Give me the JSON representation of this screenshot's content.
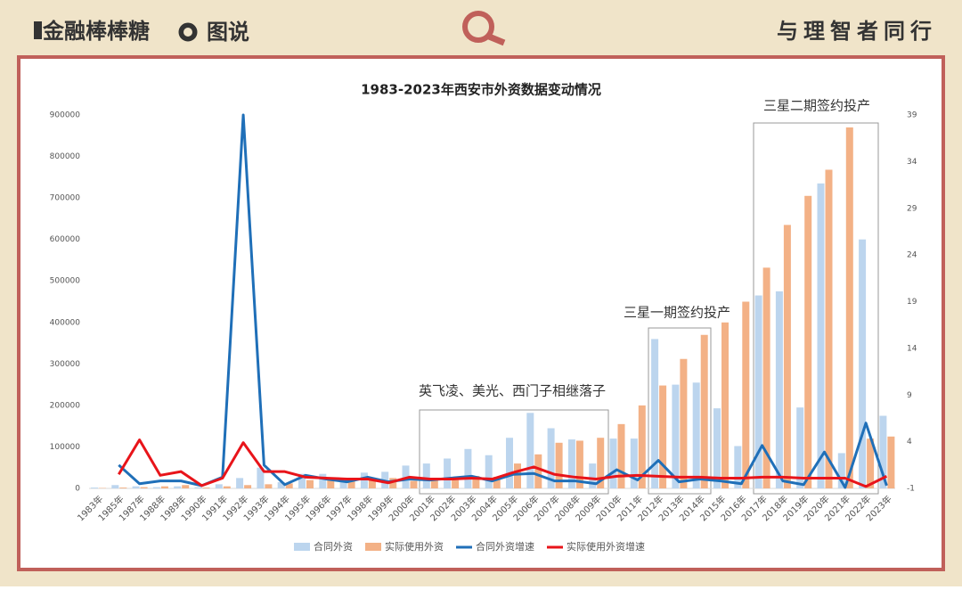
{
  "header": {
    "brand": "金融棒棒糖",
    "section": "图说",
    "slogan": "与理智者同行"
  },
  "chart_data": {
    "type": "bar",
    "title": "1983-2023年西安市外资数据变动情况",
    "categories": [
      "1983年",
      "1985年",
      "1987年",
      "1988年",
      "1989年",
      "1990年",
      "1991年",
      "1992年",
      "1993年",
      "1994年",
      "1995年",
      "1996年",
      "1997年",
      "1998年",
      "1999年",
      "2000年",
      "2001年",
      "2002年",
      "2003年",
      "2004年",
      "2005年",
      "2006年",
      "2007年",
      "2008年",
      "2009年",
      "2010年",
      "2011年",
      "2012年",
      "2013年",
      "2014年",
      "2015年",
      "2016年",
      "2017年",
      "2018年",
      "2019年",
      "2020年",
      "2021年",
      "2022年",
      "2023年"
    ],
    "series": [
      {
        "name": "合同外资",
        "type": "bar",
        "color": "#bcd5ee",
        "values": [
          2000,
          8000,
          5000,
          3000,
          5000,
          3000,
          10000,
          25000,
          50000,
          15000,
          35000,
          35000,
          25000,
          38000,
          40000,
          55000,
          60000,
          72000,
          95000,
          80000,
          122000,
          182000,
          145000,
          118000,
          60000,
          120000,
          120000,
          360000,
          250000,
          255000,
          193000,
          102000,
          465000,
          475000,
          195000,
          735000,
          85000,
          600000,
          175000
        ]
      },
      {
        "name": "实际使用外资",
        "type": "bar",
        "color": "#f3b186",
        "values": [
          1000,
          2000,
          3000,
          5000,
          8000,
          2000,
          5000,
          8000,
          10000,
          12000,
          20000,
          22000,
          20000,
          25000,
          25000,
          18000,
          20000,
          20000,
          30000,
          28000,
          60000,
          82000,
          110000,
          115000,
          122000,
          155000,
          200000,
          248000,
          312000,
          370000,
          400000,
          450000,
          532000,
          635000,
          705000,
          768000,
          870000,
          120000,
          125000
        ]
      },
      {
        "name": "合同外资增速",
        "type": "line",
        "axis": "y2",
        "color": "#1f6fb8",
        "values": [
          null,
          1.5,
          -0.5,
          -0.2,
          -0.2,
          -0.7,
          0.2,
          39,
          1.5,
          -0.6,
          0.4,
          0.0,
          -0.3,
          0.2,
          -0.3,
          0.0,
          -0.1,
          0.1,
          0.3,
          -0.2,
          0.5,
          0.6,
          -0.2,
          -0.2,
          -0.5,
          1.0,
          -0.1,
          2.0,
          -0.3,
          0.0,
          -0.2,
          -0.5,
          3.6,
          -0.2,
          -0.6,
          2.9,
          -0.9,
          6.0,
          -0.7
        ]
      },
      {
        "name": "实际使用外资增速",
        "type": "line",
        "axis": "y2",
        "color": "#e8141a",
        "values": [
          null,
          0.5,
          4.2,
          0.4,
          0.8,
          -0.7,
          0.1,
          3.9,
          0.8,
          0.8,
          0.2,
          0.1,
          0.0,
          0.0,
          -0.4,
          0.2,
          0.0,
          0.0,
          0.1,
          0.0,
          0.7,
          1.3,
          0.5,
          0.2,
          0.0,
          0.3,
          0.4,
          0.3,
          0.2,
          0.2,
          0.1,
          0.1,
          0.2,
          0.2,
          0.1,
          0.1,
          0.1,
          -0.8,
          0.3
        ]
      }
    ],
    "ylim": [
      0,
      900000
    ],
    "yticks": [
      0,
      100000,
      200000,
      300000,
      400000,
      500000,
      600000,
      700000,
      800000,
      900000
    ],
    "y2lim": [
      -1,
      39
    ],
    "y2ticks": [
      -1,
      4,
      9,
      14,
      19,
      24,
      29,
      34,
      39
    ],
    "annotations": [
      "英飞凌、美光、西门子相继落子",
      "三星一期签约投产",
      "三星二期签约投产"
    ],
    "legend": "bottom"
  }
}
